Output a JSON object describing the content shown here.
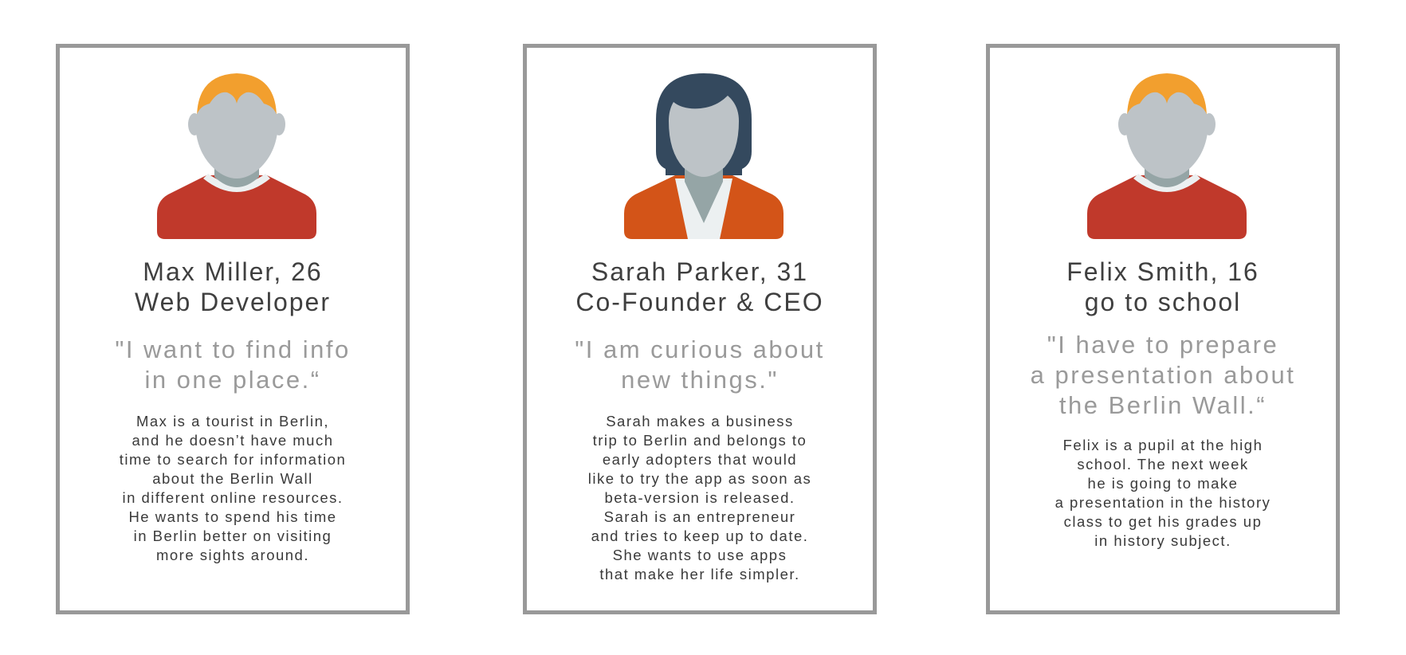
{
  "personas": [
    {
      "name": "Max Miller, 26",
      "role": "Web Developer",
      "quote_lines": [
        "\"I want to find info",
        "in one place.“"
      ],
      "bio_lines": [
        "Max is a tourist in Berlin,",
        "and he doesn’t have much",
        "time to search for information",
        "about the Berlin Wall",
        "in different online resources.",
        "He wants to spend his time",
        "in Berlin better on visiting",
        "more sights around."
      ],
      "avatar": {
        "icon": "male-avatar-icon",
        "hair_color": "#f29f2e",
        "shirt_color": "#c0392b"
      }
    },
    {
      "name": "Sarah Parker, 31",
      "role": "Co-Founder & CEO",
      "quote_lines": [
        "\"I am curious about",
        "new things.\""
      ],
      "bio_lines": [
        "Sarah makes a business",
        "trip to Berlin and belongs to",
        "early adopters that would",
        "like to try the app as soon as",
        "beta-version is released.",
        "Sarah is an entrepreneur",
        "and tries to keep up to date.",
        "She wants to use apps",
        "that make her life simpler."
      ],
      "avatar": {
        "icon": "female-avatar-icon",
        "hair_color": "#34495e",
        "shirt_color": "#d35418"
      }
    },
    {
      "name": "Felix Smith, 16",
      "role": "go to school",
      "quote_lines": [
        "\"I have to prepare",
        "a presentation about",
        "the Berlin Wall.“"
      ],
      "bio_lines": [
        "Felix is a pupil at the high",
        "school. The next week",
        "he is going to make",
        "a presentation in the history",
        "class to get his grades up",
        "in history subject."
      ],
      "avatar": {
        "icon": "male-avatar-icon",
        "hair_color": "#f29f2e",
        "shirt_color": "#c0392b"
      }
    }
  ],
  "colors": {
    "card_border": "#999999",
    "name_text": "#3f3f3f",
    "quote_text": "#9a9a9a",
    "bio_text": "#3a3a3a",
    "skin": "#bdc3c7",
    "neck": "#95a5a6",
    "collar": "#ecf0f1"
  }
}
